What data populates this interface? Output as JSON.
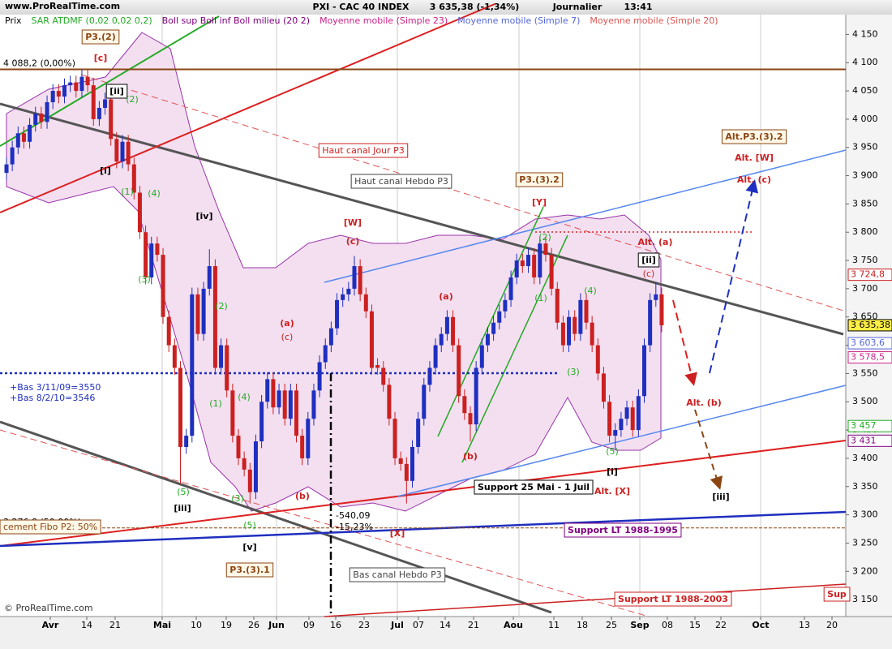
{
  "chart_data": {
    "type": "candlestick",
    "watermark": "www.ProRealTime.com",
    "title": "PXI - CAC 40 INDEX",
    "quote": "3 635,38 (-1,34%)",
    "period": "Journalier",
    "time": "13:41",
    "copyright": "© ProRealTime.com",
    "indicators": [
      {
        "name": "Prix",
        "color": "#000000"
      },
      {
        "name": "SAR ATDMF (0,02 0,02 0,2)",
        "color": "#22aa22"
      },
      {
        "name": "Boll sup Boll inf Boll milieu (20 2)",
        "color": "#800080"
      },
      {
        "name": "Moyenne mobile (Simple 23)",
        "color": "#cc2288"
      },
      {
        "name": "Moyenne mobile (Simple 7)",
        "color": "#5566dd"
      },
      {
        "name": "Moyenne mobile (Simple 20)",
        "color": "#dd5555"
      }
    ],
    "up_color": "#1f2fbf",
    "down_color": "#cc2020",
    "ylim": [
      3120,
      4185
    ],
    "yticks": [
      {
        "value": 3150,
        "label": "3 150"
      },
      {
        "value": 3200,
        "label": "3 200"
      },
      {
        "value": 3250,
        "label": "3 250"
      },
      {
        "value": 3300,
        "label": "3 300"
      },
      {
        "value": 3350,
        "label": "3 350"
      },
      {
        "value": 3400,
        "label": "3 400"
      },
      {
        "value": 3450,
        "label": "3 450"
      },
      {
        "value": 3500,
        "label": "3 500"
      },
      {
        "value": 3550,
        "label": "3 550"
      },
      {
        "value": 3600,
        "label": "3 600"
      },
      {
        "value": 3650,
        "label": "3 650"
      },
      {
        "value": 3700,
        "label": "3 700"
      },
      {
        "value": 3750,
        "label": "3 750"
      },
      {
        "value": 3800,
        "label": "3 800"
      },
      {
        "value": 3850,
        "label": "3 850"
      },
      {
        "value": 3900,
        "label": "3 900"
      },
      {
        "value": 3950,
        "label": "3 950"
      },
      {
        "value": 4000,
        "label": "4 000"
      },
      {
        "value": 4050,
        "label": "4 050"
      },
      {
        "value": 4100,
        "label": "4 100"
      },
      {
        "value": 4150,
        "label": "4 150"
      }
    ],
    "x_labels": [
      "Avr",
      "14",
      "21",
      "Mai",
      "10",
      "19",
      "26",
      "Jun",
      "09",
      "16",
      "23",
      "Jul",
      "07",
      "14",
      "21",
      "Aou",
      "11",
      "18",
      "25",
      "Sep",
      "08",
      "15",
      "22",
      "Oct",
      "13",
      "20"
    ],
    "candles": [
      [
        3905,
        3932,
        3893,
        3920
      ],
      [
        3920,
        3962,
        3908,
        3950
      ],
      [
        3950,
        3987,
        3938,
        3975
      ],
      [
        3975,
        3987,
        3948,
        3960
      ],
      [
        3960,
        4002,
        3948,
        3990
      ],
      [
        3990,
        4022,
        3978,
        4010
      ],
      [
        4010,
        4022,
        3983,
        3995
      ],
      [
        3995,
        4042,
        3983,
        4030
      ],
      [
        4030,
        4062,
        4018,
        4050
      ],
      [
        4050,
        4062,
        4028,
        4040
      ],
      [
        4040,
        4072,
        4028,
        4060
      ],
      [
        4060,
        4077,
        4048,
        4065
      ],
      [
        4065,
        4077,
        4038,
        4050
      ],
      [
        4050,
        4088,
        4038,
        4075
      ],
      [
        4075,
        4087,
        4048,
        4060
      ],
      [
        4060,
        4072,
        3988,
        4000
      ],
      [
        4000,
        4032,
        3988,
        4020
      ],
      [
        4020,
        4047,
        4008,
        4035
      ],
      [
        4035,
        4047,
        3953,
        3965
      ],
      [
        3965,
        3977,
        3913,
        3925
      ],
      [
        3925,
        3972,
        3913,
        3960
      ],
      [
        3960,
        3972,
        3908,
        3920
      ],
      [
        3920,
        3932,
        3858,
        3870
      ],
      [
        3870,
        3882,
        3788,
        3800
      ],
      [
        3800,
        3812,
        3708,
        3720
      ],
      [
        3720,
        3792,
        3708,
        3780
      ],
      [
        3780,
        3792,
        3748,
        3760
      ],
      [
        3760,
        3772,
        3638,
        3650
      ],
      [
        3650,
        3662,
        3588,
        3600
      ],
      [
        3600,
        3612,
        3548,
        3560
      ],
      [
        3560,
        3572,
        3355,
        3420
      ],
      [
        3420,
        3452,
        3408,
        3440
      ],
      [
        3440,
        3702,
        3428,
        3690
      ],
      [
        3690,
        3702,
        3608,
        3620
      ],
      [
        3620,
        3712,
        3608,
        3700
      ],
      [
        3700,
        3770,
        3688,
        3740
      ],
      [
        3740,
        3752,
        3548,
        3560
      ],
      [
        3560,
        3612,
        3548,
        3600
      ],
      [
        3600,
        3612,
        3508,
        3520
      ],
      [
        3520,
        3532,
        3428,
        3440
      ],
      [
        3440,
        3452,
        3388,
        3400
      ],
      [
        3400,
        3412,
        3368,
        3380
      ],
      [
        3380,
        3392,
        3320,
        3340
      ],
      [
        3340,
        3442,
        3328,
        3430
      ],
      [
        3430,
        3512,
        3418,
        3500
      ],
      [
        3500,
        3552,
        3488,
        3540
      ],
      [
        3540,
        3552,
        3478,
        3490
      ],
      [
        3490,
        3532,
        3478,
        3520
      ],
      [
        3520,
        3532,
        3458,
        3470
      ],
      [
        3470,
        3532,
        3458,
        3520
      ],
      [
        3520,
        3532,
        3428,
        3440
      ],
      [
        3440,
        3452,
        3388,
        3400
      ],
      [
        3400,
        3482,
        3388,
        3470
      ],
      [
        3470,
        3532,
        3458,
        3520
      ],
      [
        3520,
        3582,
        3508,
        3570
      ],
      [
        3570,
        3612,
        3558,
        3600
      ],
      [
        3600,
        3642,
        3588,
        3630
      ],
      [
        3630,
        3692,
        3618,
        3680
      ],
      [
        3680,
        3702,
        3668,
        3690
      ],
      [
        3690,
        3712,
        3678,
        3700
      ],
      [
        3700,
        3758,
        3688,
        3740
      ],
      [
        3740,
        3752,
        3678,
        3690
      ],
      [
        3690,
        3702,
        3648,
        3660
      ],
      [
        3660,
        3672,
        3548,
        3560
      ],
      [
        3565,
        3577,
        3548,
        3560
      ],
      [
        3560,
        3572,
        3518,
        3530
      ],
      [
        3530,
        3542,
        3458,
        3470
      ],
      [
        3470,
        3482,
        3388,
        3400
      ],
      [
        3400,
        3412,
        3378,
        3390
      ],
      [
        3390,
        3402,
        3320,
        3360
      ],
      [
        3360,
        3432,
        3348,
        3420
      ],
      [
        3420,
        3482,
        3408,
        3470
      ],
      [
        3470,
        3542,
        3458,
        3530
      ],
      [
        3530,
        3572,
        3518,
        3560
      ],
      [
        3560,
        3612,
        3548,
        3600
      ],
      [
        3600,
        3632,
        3588,
        3620
      ],
      [
        3620,
        3662,
        3608,
        3650
      ],
      [
        3650,
        3662,
        3588,
        3600
      ],
      [
        3600,
        3612,
        3498,
        3510
      ],
      [
        3510,
        3522,
        3468,
        3480
      ],
      [
        3480,
        3492,
        3430,
        3460
      ],
      [
        3460,
        3572,
        3448,
        3560
      ],
      [
        3560,
        3612,
        3548,
        3600
      ],
      [
        3600,
        3632,
        3588,
        3620
      ],
      [
        3620,
        3652,
        3608,
        3640
      ],
      [
        3640,
        3672,
        3628,
        3660
      ],
      [
        3660,
        3692,
        3648,
        3680
      ],
      [
        3680,
        3732,
        3668,
        3720
      ],
      [
        3720,
        3762,
        3708,
        3750
      ],
      [
        3750,
        3762,
        3728,
        3740
      ],
      [
        3740,
        3772,
        3728,
        3760
      ],
      [
        3760,
        3772,
        3708,
        3720
      ],
      [
        3720,
        3792,
        3708,
        3780
      ],
      [
        3780,
        3792,
        3748,
        3760
      ],
      [
        3760,
        3772,
        3688,
        3700
      ],
      [
        3700,
        3712,
        3628,
        3640
      ],
      [
        3640,
        3652,
        3588,
        3600
      ],
      [
        3600,
        3662,
        3588,
        3650
      ],
      [
        3650,
        3662,
        3608,
        3620
      ],
      [
        3620,
        3692,
        3608,
        3680
      ],
      [
        3680,
        3692,
        3628,
        3640
      ],
      [
        3640,
        3652,
        3588,
        3600
      ],
      [
        3600,
        3612,
        3538,
        3550
      ],
      [
        3550,
        3562,
        3488,
        3500
      ],
      [
        3500,
        3512,
        3428,
        3440
      ],
      [
        3440,
        3462,
        3415,
        3450
      ],
      [
        3450,
        3482,
        3438,
        3470
      ],
      [
        3470,
        3502,
        3458,
        3490
      ],
      [
        3490,
        3502,
        3438,
        3450
      ],
      [
        3450,
        3522,
        3438,
        3510
      ],
      [
        3510,
        3612,
        3498,
        3600
      ],
      [
        3600,
        3692,
        3588,
        3680
      ],
      [
        3680,
        3712,
        3668,
        3690
      ],
      [
        3690,
        3702,
        3623,
        3635.38
      ]
    ],
    "price_markers": [
      {
        "value": 3724.8,
        "label": "3 724,8",
        "color": "#cc2020"
      },
      {
        "value": 3635.38,
        "label": "3 635,38",
        "color": "#000000",
        "highlight": true
      },
      {
        "value": 3603.6,
        "label": "3 603,6",
        "color": "#5566dd"
      },
      {
        "value": 3578.5,
        "label": "3 578,5",
        "color": "#cc2288"
      },
      {
        "value": 3457,
        "label": "3 457",
        "color": "#22aa22"
      },
      {
        "value": 3431,
        "label": "3 431",
        "color": "#800080"
      }
    ],
    "fibo_levels": [
      {
        "value": 4088.2,
        "label": "4 088,2 (0,00%)",
        "color": "#8b4513"
      },
      {
        "value": 3276.8,
        "label": "3 276,8 (50,00%)",
        "color": "#8b4513"
      }
    ],
    "annotations": [
      {
        "text": "[c]",
        "color": "#cc2020"
      },
      {
        "text": "P3.(2)",
        "color": "#8b4513"
      },
      {
        "text": "[ii]",
        "color": "#000000"
      },
      {
        "text": "[i]",
        "color": "#000000"
      },
      {
        "text": "[iv]",
        "color": "#000000"
      },
      {
        "text": "[iii]",
        "color": "#000000"
      },
      {
        "text": "[v]",
        "color": "#000000"
      },
      {
        "text": "P3.(3).1",
        "color": "#8b4513"
      },
      {
        "text": "[W]",
        "color": "#cc2020"
      },
      {
        "text": "(c)",
        "color": "#cc2020"
      },
      {
        "text": "(a)",
        "color": "#cc2020"
      },
      {
        "text": "(b)",
        "color": "#cc2020"
      },
      {
        "text": "[X]",
        "color": "#cc2020"
      },
      {
        "text": "(b)",
        "color": "#cc2020"
      },
      {
        "text": "P3.(3).2",
        "color": "#8b4513"
      },
      {
        "text": "[Y]",
        "color": "#cc2020"
      },
      {
        "text": "Alt. (a)",
        "color": "#cc2020"
      },
      {
        "text": "[ii]",
        "color": "#000000"
      },
      {
        "text": "[i]",
        "color": "#000000"
      },
      {
        "text": "Alt. [X]",
        "color": "#cc2020"
      },
      {
        "text": "Alt. (b)",
        "color": "#cc2020"
      },
      {
        "text": "[iii]",
        "color": "#000000"
      },
      {
        "text": "Alt.P3.(3).2",
        "color": "#8b4513"
      },
      {
        "text": "Alt. [W]",
        "color": "#cc2020"
      },
      {
        "text": "Alt. (c)",
        "color": "#cc2020"
      },
      {
        "text": "Haut canal Jour P3",
        "color": "#cc2020"
      },
      {
        "text": "Haut canal Hebdo P3",
        "color": "#444444"
      },
      {
        "text": "Bas canal Hebdo P3",
        "color": "#444444"
      },
      {
        "text": "Support 25 Mai - 1 Juil",
        "color": "#000000"
      },
      {
        "text": "Support LT 1988-1995",
        "color": "#800080"
      },
      {
        "text": "Support LT 1988-2003",
        "color": "#cc2020"
      },
      {
        "text": "Sup",
        "color": "#cc2020"
      },
      {
        "text": "(a)",
        "color": "#cc2020"
      },
      {
        "text": "(c)",
        "color": "#cc2020"
      },
      {
        "text": "(1)",
        "color": "#22aa22"
      },
      {
        "text": "(2)",
        "color": "#22aa22"
      },
      {
        "text": "(3)",
        "color": "#22aa22"
      },
      {
        "text": "(4)",
        "color": "#22aa22"
      },
      {
        "text": "(5)",
        "color": "#22aa22"
      },
      {
        "text": "(3)",
        "color": "#22aa22"
      },
      {
        "text": "(5)",
        "color": "#22aa22"
      },
      {
        "text": "(1)",
        "color": "#22aa22"
      },
      {
        "text": "(2)",
        "color": "#22aa22"
      },
      {
        "text": "(4)",
        "color": "#22aa22"
      },
      {
        "text": "(4)",
        "color": "#22aa22"
      },
      {
        "text": "(5)",
        "color": "#22aa22"
      },
      {
        "text": "(1)",
        "color": "#22aa22"
      },
      {
        "text": "(2)",
        "color": "#22aa22"
      },
      {
        "text": "(3)",
        "color": "#22aa22"
      },
      {
        "text": "(c)",
        "color": "#cc2020"
      },
      {
        "text": "-540,09",
        "color": "#000000"
      },
      {
        "text": "-15,23%",
        "color": "#000000"
      },
      {
        "text": "+Bas 3/11/09=3550",
        "color": "#1f2fbf"
      },
      {
        "text": "+Bas 8/2/10=3546",
        "color": "#1f2fbf"
      },
      {
        "text": "cement Fibo P2: 50%",
        "color": "#8b4513"
      }
    ]
  }
}
